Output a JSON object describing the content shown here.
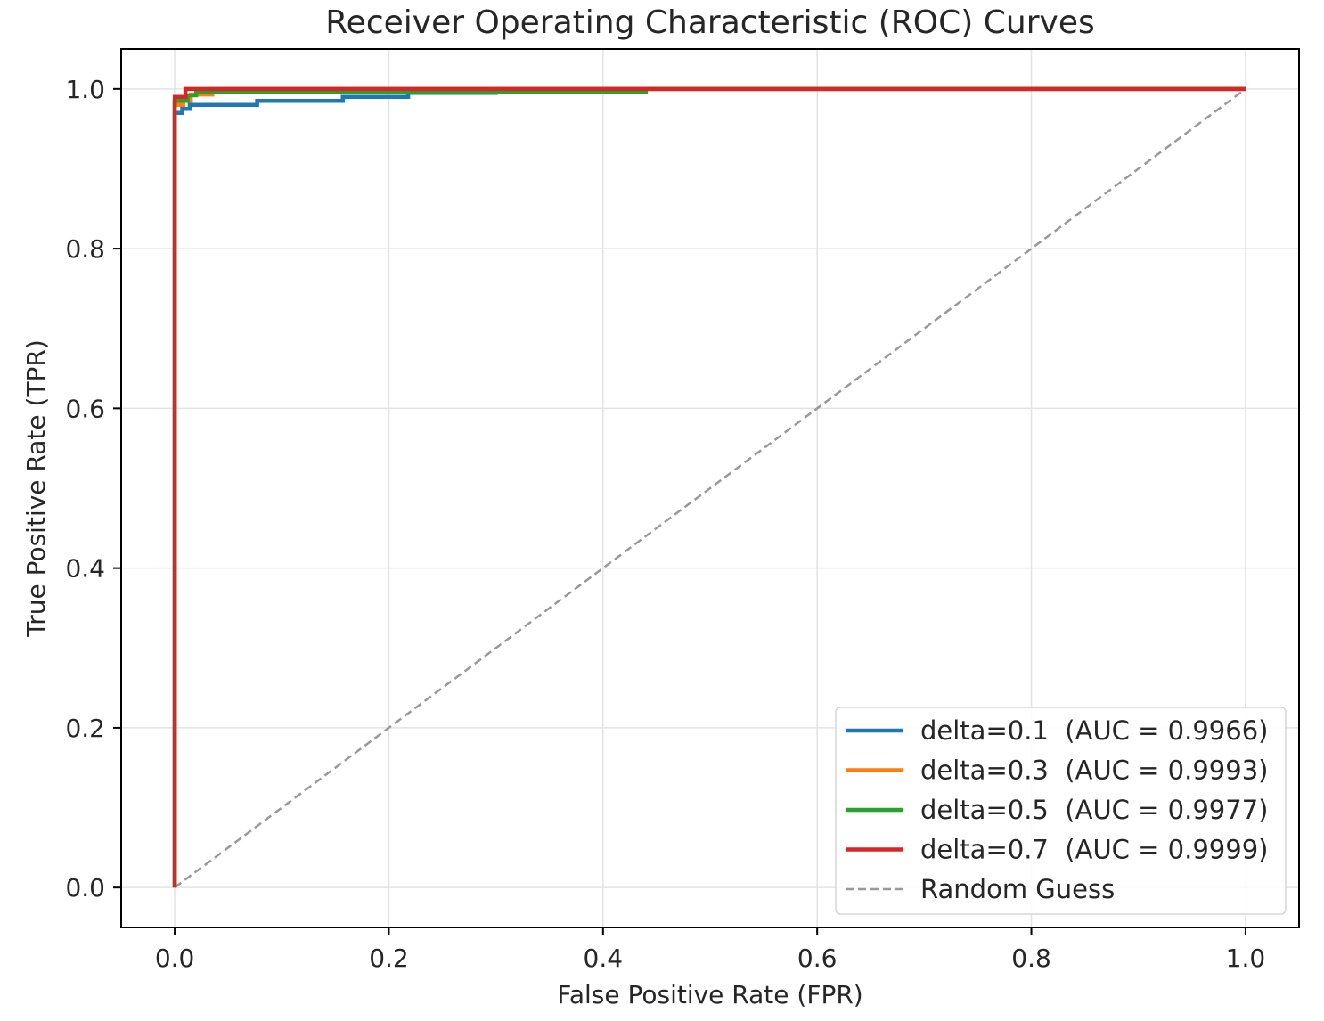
{
  "chart_data": {
    "type": "line",
    "title": "Receiver Operating Characteristic (ROC) Curves",
    "xlabel": "False Positive Rate (FPR)",
    "ylabel": "True Positive Rate (TPR)",
    "xlim": [
      -0.05,
      1.05
    ],
    "ylim": [
      -0.05,
      1.05
    ],
    "xticks": [
      0.0,
      0.2,
      0.4,
      0.6,
      0.8,
      1.0
    ],
    "yticks": [
      0.0,
      0.2,
      0.4,
      0.6,
      0.8,
      1.0
    ],
    "xtick_labels": [
      "0.0",
      "0.2",
      "0.4",
      "0.6",
      "0.8",
      "1.0"
    ],
    "ytick_labels": [
      "0.0",
      "0.2",
      "0.4",
      "0.6",
      "0.8",
      "1.0"
    ],
    "grid": true,
    "legend_position": "lower-right",
    "series": [
      {
        "name": "delta=0.1  (AUC = 0.9966)",
        "color": "#1f77b4",
        "style": "solid",
        "x": [
          0.0,
          0.0,
          0.007,
          0.007,
          0.014,
          0.014,
          0.077,
          0.077,
          0.157,
          0.157,
          0.218,
          0.218,
          0.3,
          0.3,
          1.0
        ],
        "y": [
          0.0,
          0.97,
          0.97,
          0.975,
          0.975,
          0.98,
          0.98,
          0.985,
          0.985,
          0.99,
          0.99,
          0.995,
          0.995,
          1.0,
          1.0
        ]
      },
      {
        "name": "delta=0.3  (AUC = 0.9993)",
        "color": "#ff7f0e",
        "style": "solid",
        "x": [
          0.0,
          0.0,
          0.008,
          0.008,
          0.015,
          0.015,
          0.035,
          0.035,
          1.0
        ],
        "y": [
          0.0,
          0.98,
          0.98,
          0.985,
          0.985,
          0.993,
          0.993,
          1.0,
          1.0
        ]
      },
      {
        "name": "delta=0.5  (AUC = 0.9977)",
        "color": "#2ca02c",
        "style": "solid",
        "x": [
          0.0,
          0.0,
          0.012,
          0.012,
          0.02,
          0.02,
          0.44,
          0.44,
          1.0
        ],
        "y": [
          0.0,
          0.985,
          0.985,
          0.992,
          0.992,
          0.996,
          0.996,
          1.0,
          1.0
        ]
      },
      {
        "name": "delta=0.7  (AUC = 0.9999)",
        "color": "#d62728",
        "style": "solid",
        "x": [
          0.0,
          0.0,
          0.01,
          0.01,
          1.0
        ],
        "y": [
          0.0,
          0.99,
          0.99,
          1.0,
          1.0
        ]
      },
      {
        "name": "Random Guess",
        "color": "#999999",
        "style": "dashed",
        "x": [
          0.0,
          1.0
        ],
        "y": [
          0.0,
          1.0
        ]
      }
    ]
  }
}
